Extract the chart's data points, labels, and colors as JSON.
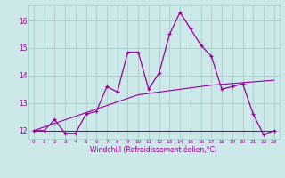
{
  "xlabel": "Windchill (Refroidissement éolien,°C)",
  "bg_color": "#cce8e8",
  "line_color": "#990099",
  "grid_color": "#aacccc",
  "x_data": [
    0,
    1,
    2,
    3,
    4,
    5,
    6,
    7,
    8,
    9,
    10,
    11,
    12,
    13,
    14,
    15,
    16,
    17,
    18,
    19,
    20,
    21,
    22,
    23
  ],
  "y_main": [
    12.0,
    12.0,
    12.4,
    11.9,
    11.9,
    12.6,
    12.7,
    13.6,
    13.4,
    14.85,
    14.85,
    13.5,
    14.1,
    15.5,
    16.3,
    15.7,
    15.1,
    14.7,
    13.5,
    13.6,
    13.7,
    12.6,
    11.85,
    12.0
  ],
  "y_line1": [
    12.0,
    12.13,
    12.26,
    12.39,
    12.52,
    12.65,
    12.78,
    12.91,
    13.04,
    13.17,
    13.3,
    13.35,
    13.4,
    13.45,
    13.5,
    13.55,
    13.6,
    13.65,
    13.68,
    13.71,
    13.74,
    13.77,
    13.8,
    13.83
  ],
  "y_line2": [
    12.0,
    12.0,
    12.0,
    12.0,
    12.0,
    12.0,
    12.0,
    12.0,
    12.0,
    12.0,
    12.0,
    12.0,
    12.0,
    12.0,
    12.0,
    12.0,
    12.0,
    12.0,
    12.0,
    12.0,
    12.0,
    12.0,
    12.0,
    12.0
  ],
  "ylim": [
    11.7,
    16.55
  ],
  "yticks": [
    12,
    13,
    14,
    15,
    16
  ],
  "xticks": [
    0,
    1,
    2,
    3,
    4,
    5,
    6,
    7,
    8,
    9,
    10,
    11,
    12,
    13,
    14,
    15,
    16,
    17,
    18,
    19,
    20,
    21,
    22,
    23
  ]
}
